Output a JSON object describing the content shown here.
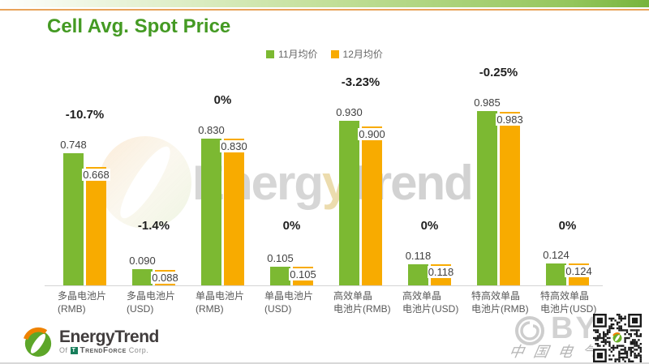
{
  "page": {
    "title": "Cell Avg. Spot Price"
  },
  "colors": {
    "nov": "#7CB932",
    "dec": "#F8AB00",
    "title_green": "#449A23",
    "axis_line": "#D5D5D5"
  },
  "legend": {
    "items": [
      {
        "label": "11月均价",
        "color": "#7CB932"
      },
      {
        "label": "12月均价",
        "color": "#F8AB00"
      }
    ]
  },
  "chart_data": {
    "type": "bar",
    "title": "Cell Avg. Spot Price",
    "legend_position": "top",
    "gridlines": false,
    "ylim": [
      0,
      1.05
    ],
    "categories": [
      "多晶电池片 (RMB)",
      "多晶电池片 (USD)",
      "单晶电池片 (RMB)",
      "单晶电池片 (USD)",
      "高效单晶电池片(RMB)",
      "高效单晶电池片(USD)",
      "特高效单晶电池片(RMB)",
      "特高效单晶电池片(USD)"
    ],
    "categories_lines": [
      [
        "多晶电池片",
        "(RMB)"
      ],
      [
        "多晶电池片",
        "(USD)"
      ],
      [
        "单晶电池片",
        "(RMB)"
      ],
      [
        "单晶电池片",
        "(USD)"
      ],
      [
        "高效单晶",
        "电池片(RMB)"
      ],
      [
        "高效单晶",
        "电池片(USD)"
      ],
      [
        "特高效单晶",
        "电池片(RMB)"
      ],
      [
        "特高效单晶",
        "电池片(USD)"
      ]
    ],
    "series": [
      {
        "name": "11月均价",
        "color": "#7CB932",
        "values": [
          0.748,
          0.09,
          0.83,
          0.105,
          0.93,
          0.118,
          0.985,
          0.124
        ]
      },
      {
        "name": "12月均价",
        "color": "#F8AB00",
        "values": [
          0.668,
          0.088,
          0.83,
          0.105,
          0.9,
          0.118,
          0.983,
          0.124
        ]
      }
    ],
    "change_labels": [
      "-10.7%",
      "-1.4%",
      "0%",
      "0%",
      "-3.23%",
      "0%",
      "-0.25%",
      "0%"
    ]
  },
  "watermark": {
    "segments": [
      "Energ",
      "y",
      "Trend"
    ]
  },
  "footer_logo": {
    "name": "EnergyTrend",
    "of": "Of",
    "company": "TrendForce",
    "corp": "Corp."
  },
  "byf_watermark": {
    "text": "BYF",
    "caption": "中国电气"
  }
}
